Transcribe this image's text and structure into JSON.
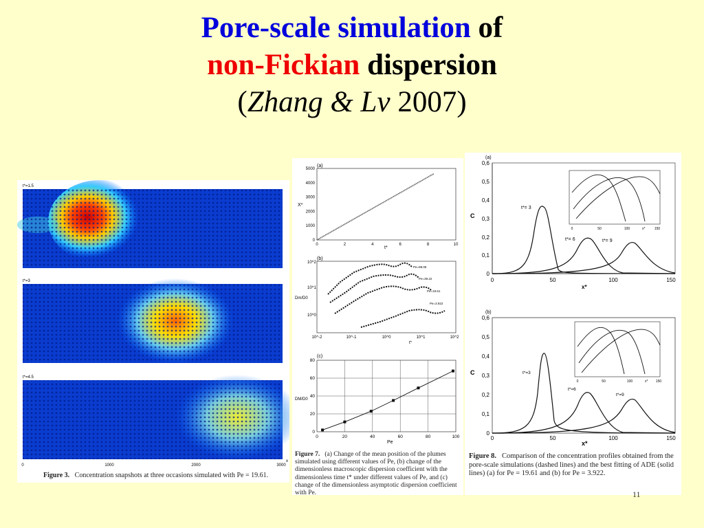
{
  "slide": {
    "title_part1": "Pore-scale simulation",
    "title_part2": "of",
    "title_part3": "non-Fickian",
    "title_part4": "dispersion",
    "title_open": "(",
    "title_authors": "Zhang & Lv",
    "title_year": "2007)",
    "page_number": "11"
  },
  "figure3": {
    "panel_labels": [
      "t*=1.5",
      "t*=3",
      "t*=4.5"
    ],
    "x_ticks": [
      "0",
      "1000",
      "2000",
      "3000"
    ],
    "x_label": "x",
    "caption_label": "Figure 3.",
    "caption_text": "Concentration snapshots at three occasions simulated with Pe = 19.61."
  },
  "figure7": {
    "a": {
      "label": "(a)",
      "y_label": "X*",
      "x_label": "t*",
      "y_ticks": [
        "0",
        "1000",
        "2000",
        "3000",
        "4000",
        "5000"
      ],
      "x_ticks": [
        "0",
        "2",
        "4",
        "6",
        "8",
        "10"
      ]
    },
    "b": {
      "label": "(b)",
      "y_label": "Dm/D0",
      "x_label": "t*",
      "y_ticks": [
        "10^0",
        "10^1",
        "10^2"
      ],
      "x_ticks": [
        "10^-2",
        "10^-1",
        "10^0",
        "10^1",
        "10^2"
      ],
      "series_labels": [
        "Pe=98.05",
        "Pe=39.22",
        "Pe=19.61",
        "Pe=3.922"
      ]
    },
    "c": {
      "label": "(c)",
      "y_label": "DM/D0",
      "x_label": "Pe",
      "y_ticks": [
        "0",
        "20",
        "40",
        "60",
        "80"
      ],
      "x_ticks": [
        "0",
        "20",
        "40",
        "60",
        "80",
        "100"
      ]
    },
    "caption_label": "Figure 7.",
    "caption_text": "(a) Change of the mean position of the plumes simulated using different values of Pe, (b) change of the dimensionless macroscopic dispersion coefficient with the dimensionless time t* under different values of Pe, and (c) change of the dimensionless asymptotic dispersion coefficient with Pe."
  },
  "figure8": {
    "a": {
      "label": "(a)",
      "y_label": "C",
      "x_label": "x*",
      "y_ticks": [
        "0",
        "0,1",
        "0,2",
        "0,3",
        "0,4",
        "0,5",
        "0,6"
      ],
      "x_ticks": [
        "0",
        "50",
        "100",
        "150"
      ],
      "curve_labels": [
        "t*= 3",
        "t*= 6",
        "t*= 9"
      ],
      "inset_x_ticks": [
        "0",
        "50",
        "100",
        "150"
      ],
      "inset_x_label": "x*"
    },
    "b": {
      "label": "(b)",
      "y_label": "C",
      "x_label": "x*",
      "y_ticks": [
        "0",
        "0,1",
        "0,2",
        "0,3",
        "0,4",
        "0,5",
        "0,6"
      ],
      "x_ticks": [
        "0",
        "50",
        "100",
        "150"
      ],
      "curve_labels": [
        "t*=3",
        "t*=6",
        "t*=9"
      ],
      "inset_x_ticks": [
        "0",
        "50",
        "100",
        "150"
      ],
      "inset_x_label": "x*"
    },
    "caption_label": "Figure 8.",
    "caption_text": "Comparison of the concentration profiles obtained from the pore-scale simulations (dashed lines) and the best fitting of ADE (solid lines) (a) for Pe = 19.61 and (b) for Pe = 3.922."
  },
  "chart_data": [
    {
      "type": "line",
      "title": "",
      "xlabel": "t*",
      "ylabel": "X*",
      "xlim": [
        0,
        10
      ],
      "ylim": [
        0,
        5000
      ],
      "x": [
        0,
        1,
        2,
        3,
        4,
        5,
        6,
        7,
        8,
        8.4
      ],
      "series": [
        {
          "values": [
            0,
            550,
            1100,
            1650,
            2200,
            2750,
            3300,
            3850,
            4400,
            4620
          ]
        }
      ]
    },
    {
      "type": "scatter",
      "title": "",
      "xlabel": "Pe",
      "ylabel": "DM/D0",
      "xlim": [
        0,
        100
      ],
      "ylim": [
        0,
        80
      ],
      "x": [
        4,
        20,
        39,
        55,
        73,
        98
      ],
      "series": [
        {
          "values": [
            2,
            11,
            23,
            35,
            49,
            68
          ]
        }
      ]
    }
  ]
}
